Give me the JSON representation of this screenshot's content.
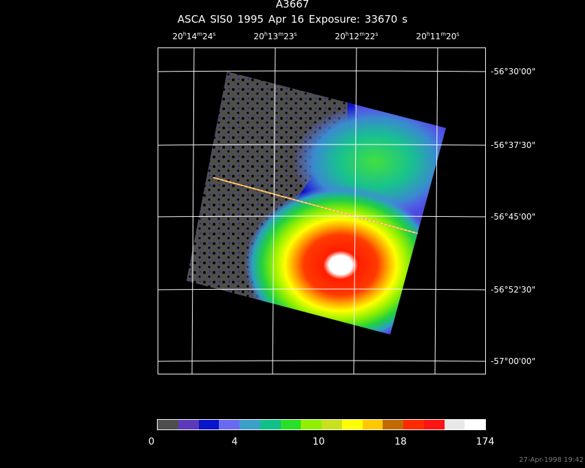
{
  "title": "A3667",
  "subtitle": "ASCA SIS0   1995 Apr 16    Exposure: 33670 s",
  "ra_ticks": [
    {
      "h": "20",
      "m": "14",
      "s": "24"
    },
    {
      "h": "20",
      "m": "13",
      "s": "23"
    },
    {
      "h": "20",
      "m": "12",
      "s": "22"
    },
    {
      "h": "20",
      "m": "11",
      "s": "20"
    }
  ],
  "dec_ticks": [
    "-56°30'00\"",
    "-56°37'30\"",
    "-56°45'00\"",
    "-56°52'30\"",
    "-57°00'00\""
  ],
  "colorbar": {
    "colors": [
      "#4e4e4e",
      "#5a3ab8",
      "#0a14c8",
      "#6a6af0",
      "#3aa0c8",
      "#10c088",
      "#28e028",
      "#90f000",
      "#c8e020",
      "#ffff00",
      "#ffc800",
      "#c06a00",
      "#ff2a00",
      "#ff1414",
      "#e8e8e8",
      "#ffffff"
    ],
    "labels": [
      "0",
      "4",
      "10",
      "18",
      "174"
    ]
  },
  "timestamp": "27-Apr-1998 19:42"
}
